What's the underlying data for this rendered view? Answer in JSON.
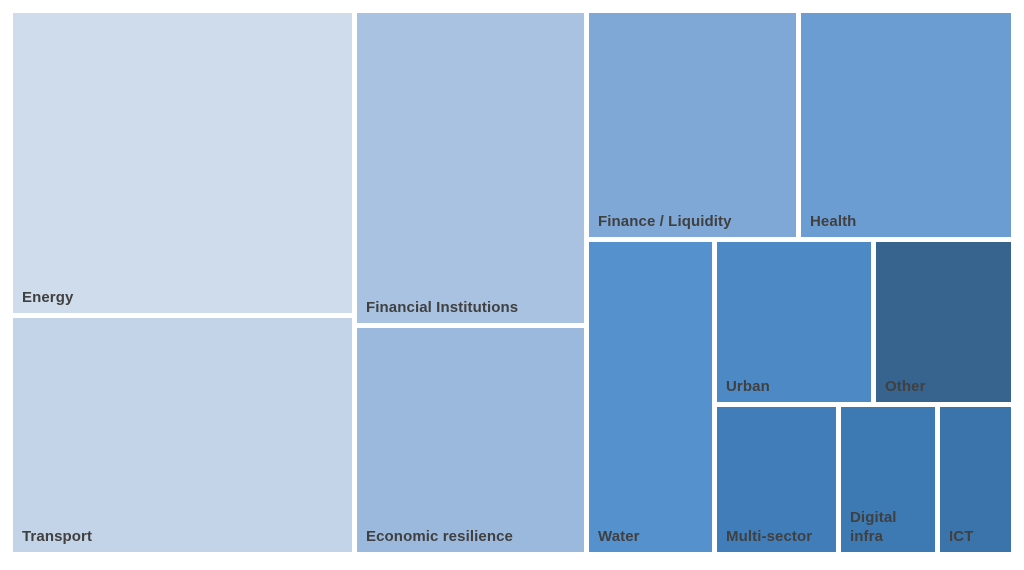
{
  "chart_data": {
    "type": "treemap",
    "title": "",
    "legend": "none",
    "values_shown": false,
    "background": "#ffffff",
    "label_color": "#404040",
    "items": [
      {
        "label": "Energy",
        "relative_area_pct": 19.5,
        "color": "#cfdcec"
      },
      {
        "label": "Transport",
        "relative_area_pct": 15.2,
        "color": "#c3d3e8"
      },
      {
        "label": "Financial Institutions",
        "relative_area_pct": 13.5,
        "color": "#a9c2e2"
      },
      {
        "label": "Economic resilience",
        "relative_area_pct": 9.8,
        "color": "#9bb8dd"
      },
      {
        "label": "Finance / Liquidity",
        "relative_area_pct": 9.0,
        "color": "#7fa8d6"
      },
      {
        "label": "Health",
        "relative_area_pct": 9.0,
        "color": "#6c9dd2"
      },
      {
        "label": "Water",
        "relative_area_pct": 7.3,
        "color": "#5591cc"
      },
      {
        "label": "Urban",
        "relative_area_pct": 4.7,
        "color": "#4d8ac5"
      },
      {
        "label": "Other",
        "relative_area_pct": 4.1,
        "color": "#36648f"
      },
      {
        "label": "Multi-sector",
        "relative_area_pct": 3.3,
        "color": "#417eb9"
      },
      {
        "label": "Digital infra",
        "relative_area_pct": 2.6,
        "color": "#3d79b2"
      },
      {
        "label": "ICT",
        "relative_area_pct": 2.0,
        "color": "#3b74aa"
      }
    ]
  }
}
